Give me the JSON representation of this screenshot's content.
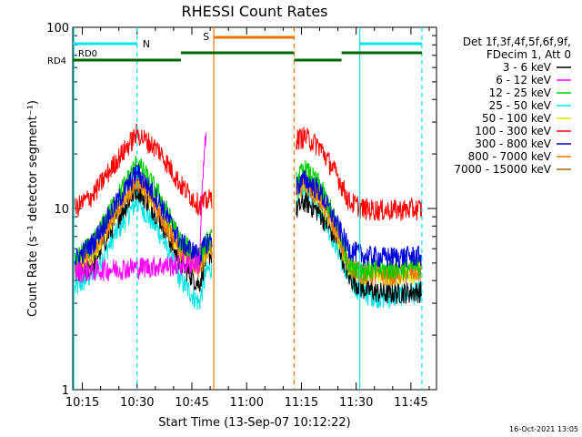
{
  "chart_data": {
    "type": "line",
    "title": "RHESSI Count Rates",
    "xlabel": "Start Time (13-Sep-07 10:12:22)",
    "ylabel": "Count Rate (s⁻¹ detector segment⁻¹)",
    "yscale": "log",
    "ylim": [
      1,
      100
    ],
    "xlim": [
      "10:12:22",
      "11:52:00"
    ],
    "x_ticks": [
      "10:15",
      "10:30",
      "10:45",
      "11:00",
      "11:15",
      "11:30",
      "11:45"
    ],
    "y_ticks": [
      "1",
      "10",
      "100"
    ],
    "grid": false,
    "legend_position": "right",
    "legend_header": [
      "Det 1f,3f,4f,5f,6f,9f,",
      "FDecim 1, Att 0"
    ],
    "gaps": [
      [
        "10:50:30",
        "11:13:30"
      ]
    ],
    "series": [
      {
        "name": "3 - 6 keV",
        "color": "#000000",
        "x": [
          "10:13",
          "10:18",
          "10:24",
          "10:30",
          "10:36",
          "10:42",
          "10:47",
          "10:49",
          "11:13",
          "11:16",
          "11:20",
          "11:25",
          "11:28",
          "11:32",
          "11:38",
          "11:48"
        ],
        "values": [
          4.2,
          5.0,
          8.5,
          13.0,
          9.0,
          5.0,
          3.8,
          5.5,
          9.5,
          11.0,
          9.5,
          6.5,
          4.2,
          3.6,
          3.4,
          3.5
        ]
      },
      {
        "name": "6 - 12 keV",
        "color": "#ff00ff",
        "x": [
          "10:13",
          "10:47",
          "10:48",
          "10:49"
        ],
        "values": [
          4.5,
          5.0,
          15.0,
          28.0
        ]
      },
      {
        "name": "12 - 25 keV",
        "color": "#00cc00",
        "x": [
          "10:13",
          "10:18",
          "10:24",
          "10:30",
          "10:36",
          "10:42",
          "10:47",
          "10:49",
          "11:13",
          "11:16",
          "11:20",
          "11:25",
          "11:28",
          "11:32",
          "11:38",
          "11:48"
        ],
        "values": [
          5.2,
          6.5,
          11.0,
          18.0,
          12.0,
          6.5,
          5.5,
          6.5,
          14.0,
          16.5,
          13.5,
          8.0,
          5.0,
          4.6,
          4.6,
          4.8
        ]
      },
      {
        "name": "25 - 50 keV",
        "color": "#00e5e5",
        "x": [
          "10:13",
          "10:18",
          "10:24",
          "10:30",
          "10:36",
          "10:42",
          "10:47",
          "10:49",
          "11:13",
          "11:16",
          "11:20",
          "11:25",
          "11:28",
          "11:32",
          "11:38",
          "11:48"
        ],
        "values": [
          3.6,
          4.4,
          7.2,
          11.0,
          7.5,
          4.0,
          3.0,
          4.5,
          10.5,
          12.5,
          10.0,
          6.0,
          4.0,
          3.4,
          3.2,
          3.5
        ]
      },
      {
        "name": "50 - 100 keV",
        "color": "#e5e500",
        "x": [
          "10:13",
          "10:18",
          "10:24",
          "10:30",
          "10:36",
          "10:42",
          "10:47",
          "10:49",
          "11:13",
          "11:16",
          "11:20",
          "11:25",
          "11:28",
          "11:32",
          "11:38",
          "11:48"
        ],
        "values": [
          4.8,
          5.8,
          9.5,
          15.0,
          10.0,
          5.8,
          4.8,
          5.8,
          12.5,
          14.0,
          11.5,
          7.0,
          4.8,
          4.4,
          4.3,
          4.5
        ]
      },
      {
        "name": "100 - 300 keV",
        "color": "#ff0000",
        "x": [
          "10:13",
          "10:18",
          "10:24",
          "10:30",
          "10:36",
          "10:42",
          "10:47",
          "10:49",
          "11:13",
          "11:16",
          "11:20",
          "11:25",
          "11:28",
          "11:32",
          "11:38",
          "11:48"
        ],
        "values": [
          10.0,
          12.0,
          18.0,
          26.0,
          21.0,
          13.5,
          10.5,
          11.0,
          24.0,
          25.0,
          22.0,
          15.0,
          11.0,
          10.0,
          9.8,
          10.0
        ]
      },
      {
        "name": "300 - 800 keV",
        "color": "#0000dd",
        "x": [
          "10:13",
          "10:18",
          "10:24",
          "10:30",
          "10:36",
          "10:42",
          "10:47",
          "10:49",
          "11:13",
          "11:16",
          "11:20",
          "11:25",
          "11:28",
          "11:32",
          "11:38",
          "11:48"
        ],
        "values": [
          5.2,
          6.5,
          10.5,
          16.0,
          11.0,
          6.5,
          5.5,
          6.5,
          13.0,
          14.5,
          12.5,
          8.0,
          6.0,
          5.5,
          5.4,
          5.5
        ]
      },
      {
        "name": "800 - 7000 keV",
        "color": "#ee7700",
        "x": [
          "10:13",
          "10:18",
          "10:24",
          "10:30",
          "10:36",
          "10:42",
          "10:47",
          "10:49",
          "11:13",
          "11:16",
          "11:20",
          "11:25",
          "11:28",
          "11:32",
          "11:38",
          "11:48"
        ],
        "values": [
          4.8,
          5.8,
          9.5,
          14.5,
          9.5,
          5.8,
          4.8,
          5.8,
          12.5,
          14.0,
          11.5,
          7.2,
          4.8,
          4.4,
          4.3,
          4.5
        ]
      },
      {
        "name": "7000 - 15000 keV",
        "color": "#aa6600",
        "x": [],
        "values": []
      }
    ],
    "annotations": {
      "N_label": "N",
      "S_label": "S",
      "RD0_label": "RD0",
      "RD4_label": "RD4",
      "night_bars": [
        [
          "10:12:22",
          "10:30"
        ],
        [
          "11:31",
          "11:48"
        ]
      ],
      "saa_bar": [
        [
          "10:51",
          "11:13"
        ]
      ],
      "decim_bars": [
        [
          "10:12:22",
          "10:42"
        ],
        [
          "10:42",
          "11:13"
        ],
        [
          "11:13",
          "11:26"
        ],
        [
          "11:26",
          "11:48"
        ]
      ],
      "cyan_vlines": [
        "10:12:40",
        "10:30",
        "11:31",
        "11:48"
      ],
      "orange_vlines": [
        "10:51",
        "11:13"
      ]
    }
  },
  "footer_timestamp": "16-Oct-2021 13:05",
  "colors": {
    "night": "#00e5e5",
    "saa": "#ee7700",
    "decim": "#006600",
    "axis": "#000000"
  }
}
